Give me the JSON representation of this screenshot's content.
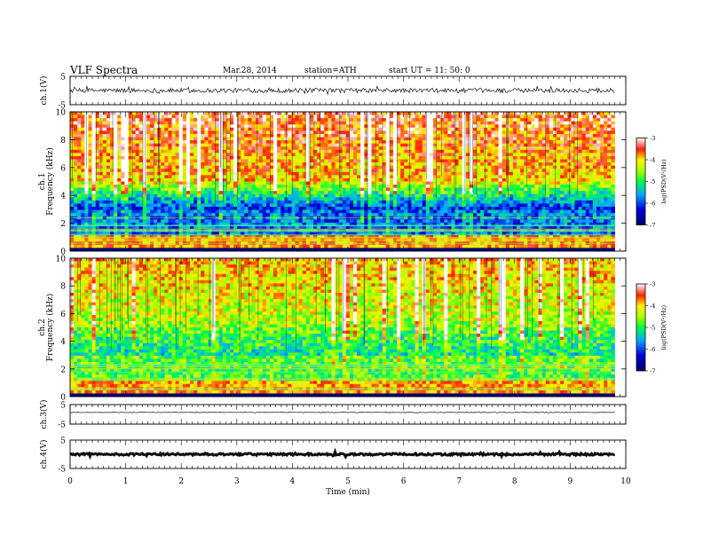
{
  "header": {
    "title": "VLF  Spectra",
    "date": "Mar.28, 2014",
    "station": "station=ATH",
    "start": "start  UT  =   11: 50: 0"
  },
  "chart_data": [
    {
      "type": "line",
      "panel": "ch1-waveform",
      "ylabel": "ch.1(V)",
      "ylim": [
        -5,
        5
      ],
      "ticks": [
        "5",
        "-5"
      ],
      "xlim": [
        0,
        10
      ],
      "x_extent": [
        0,
        9.8
      ],
      "baseline": 0,
      "noise_amplitude": 0.8
    },
    {
      "type": "heatmap",
      "panel": "ch1-spectrogram",
      "ylabel": "ch.1\nFrequency  (kHz)",
      "ylim": [
        0,
        10
      ],
      "yticks": [
        "0",
        "2",
        "4",
        "6",
        "8",
        "10"
      ],
      "xlim": [
        0,
        10
      ],
      "x_extent": [
        0,
        9.8
      ],
      "colorbar": {
        "label": "log(PSD(V²/Hz)",
        "range": [
          -7,
          -3
        ],
        "ticks": [
          "-3",
          "-4",
          "-5",
          "-6",
          "-7"
        ]
      },
      "band_low_hz_psd": -6,
      "band_high_hz_psd": -4
    },
    {
      "type": "heatmap",
      "panel": "ch2-spectrogram",
      "ylabel": "ch.2\nFrequency  (kHz)",
      "ylim": [
        0,
        10
      ],
      "yticks": [
        "0",
        "2",
        "4",
        "6",
        "8",
        "10"
      ],
      "xlim": [
        0,
        10
      ],
      "x_extent": [
        0,
        9.8
      ],
      "colorbar": {
        "label": "log(PSD(V²/Hz)",
        "range": [
          -7,
          -3
        ],
        "ticks": [
          "-3",
          "-4",
          "-5",
          "-6",
          "-7"
        ]
      },
      "band_low_hz_psd": -5,
      "band_high_hz_psd": -4.5
    },
    {
      "type": "line",
      "panel": "ch3-waveform",
      "ylabel": "ch.3(V)",
      "ylim": [
        -5,
        5
      ],
      "ticks": [
        "5",
        "-5"
      ],
      "xlim": [
        0,
        10
      ],
      "x_extent": [
        0,
        9.8
      ],
      "baseline": 1,
      "noise_amplitude": 0.15
    },
    {
      "type": "line",
      "panel": "ch4-waveform",
      "ylabel": "ch.4(V)",
      "ylim": [
        -5,
        5
      ],
      "ticks": [
        "5",
        "-5"
      ],
      "xlim": [
        0,
        10
      ],
      "x_extent": [
        0,
        9.8
      ],
      "baseline": 0,
      "noise_amplitude": 0.35
    }
  ],
  "xaxis": {
    "label": "Time  (min)",
    "ticks": [
      "0",
      "1",
      "2",
      "3",
      "4",
      "5",
      "6",
      "7",
      "8",
      "9",
      "10"
    ]
  },
  "colors": {
    "frame": "#000000",
    "trace": "#111111"
  }
}
